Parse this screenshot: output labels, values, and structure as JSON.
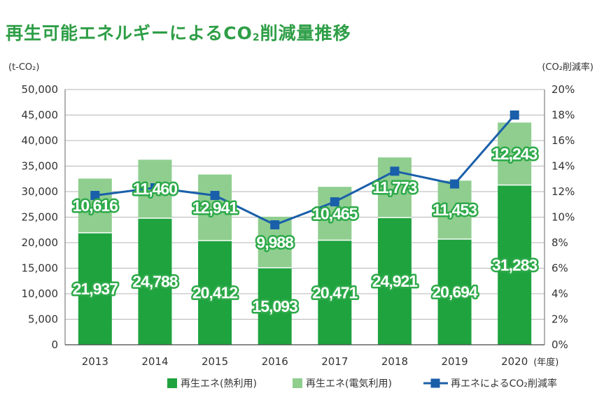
{
  "title_main": "再生可能エネルギーによるCO",
  "title_sub": "2",
  "title_tail": "削減量推移",
  "chart_data": {
    "type": "bar",
    "stacked": true,
    "categories": [
      "2013",
      "2014",
      "2015",
      "2016",
      "2017",
      "2018",
      "2019",
      "2020"
    ],
    "x_unit": "(年度)",
    "y_left": {
      "unit": "(t-CO₂)",
      "min": 0,
      "max": 50000,
      "step": 5000,
      "ticks": [
        "0",
        "5,000",
        "10,000",
        "15,000",
        "20,000",
        "25,000",
        "30,000",
        "35,000",
        "40,000",
        "45,000",
        "50,000"
      ]
    },
    "y_right": {
      "unit": "(CO₂削減率)",
      "min": 0,
      "max": 20,
      "step": 2,
      "ticks": [
        "0%",
        "2%",
        "4%",
        "6%",
        "8%",
        "10%",
        "12%",
        "14%",
        "16%",
        "18%",
        "20%"
      ]
    },
    "grid": true,
    "legend_position": "bottom-right",
    "series": [
      {
        "name": "再生エネ(熱利用)",
        "kind": "bar",
        "color": "#1fa33f",
        "values": [
          21937,
          24788,
          20412,
          15093,
          20471,
          24921,
          20694,
          31283
        ],
        "labels": [
          "21,937",
          "24,788",
          "20,412",
          "15,093",
          "20,471",
          "24,921",
          "20,694",
          "31,283"
        ]
      },
      {
        "name": "再生エネ(電気利用)",
        "kind": "bar",
        "color": "#8fce8f",
        "values": [
          10616,
          11460,
          12941,
          9988,
          10465,
          11773,
          11453,
          12243
        ],
        "labels": [
          "10,616",
          "11,460",
          "12,941",
          "9,988",
          "10,465",
          "11,773",
          "11,453",
          "12,243"
        ]
      },
      {
        "name": "再エネによるCO₂削減率",
        "kind": "line",
        "axis": "right",
        "color": "#1a5faa",
        "values": [
          11.7,
          12.3,
          11.7,
          9.4,
          11.2,
          13.6,
          12.6,
          18.0
        ]
      }
    ]
  }
}
